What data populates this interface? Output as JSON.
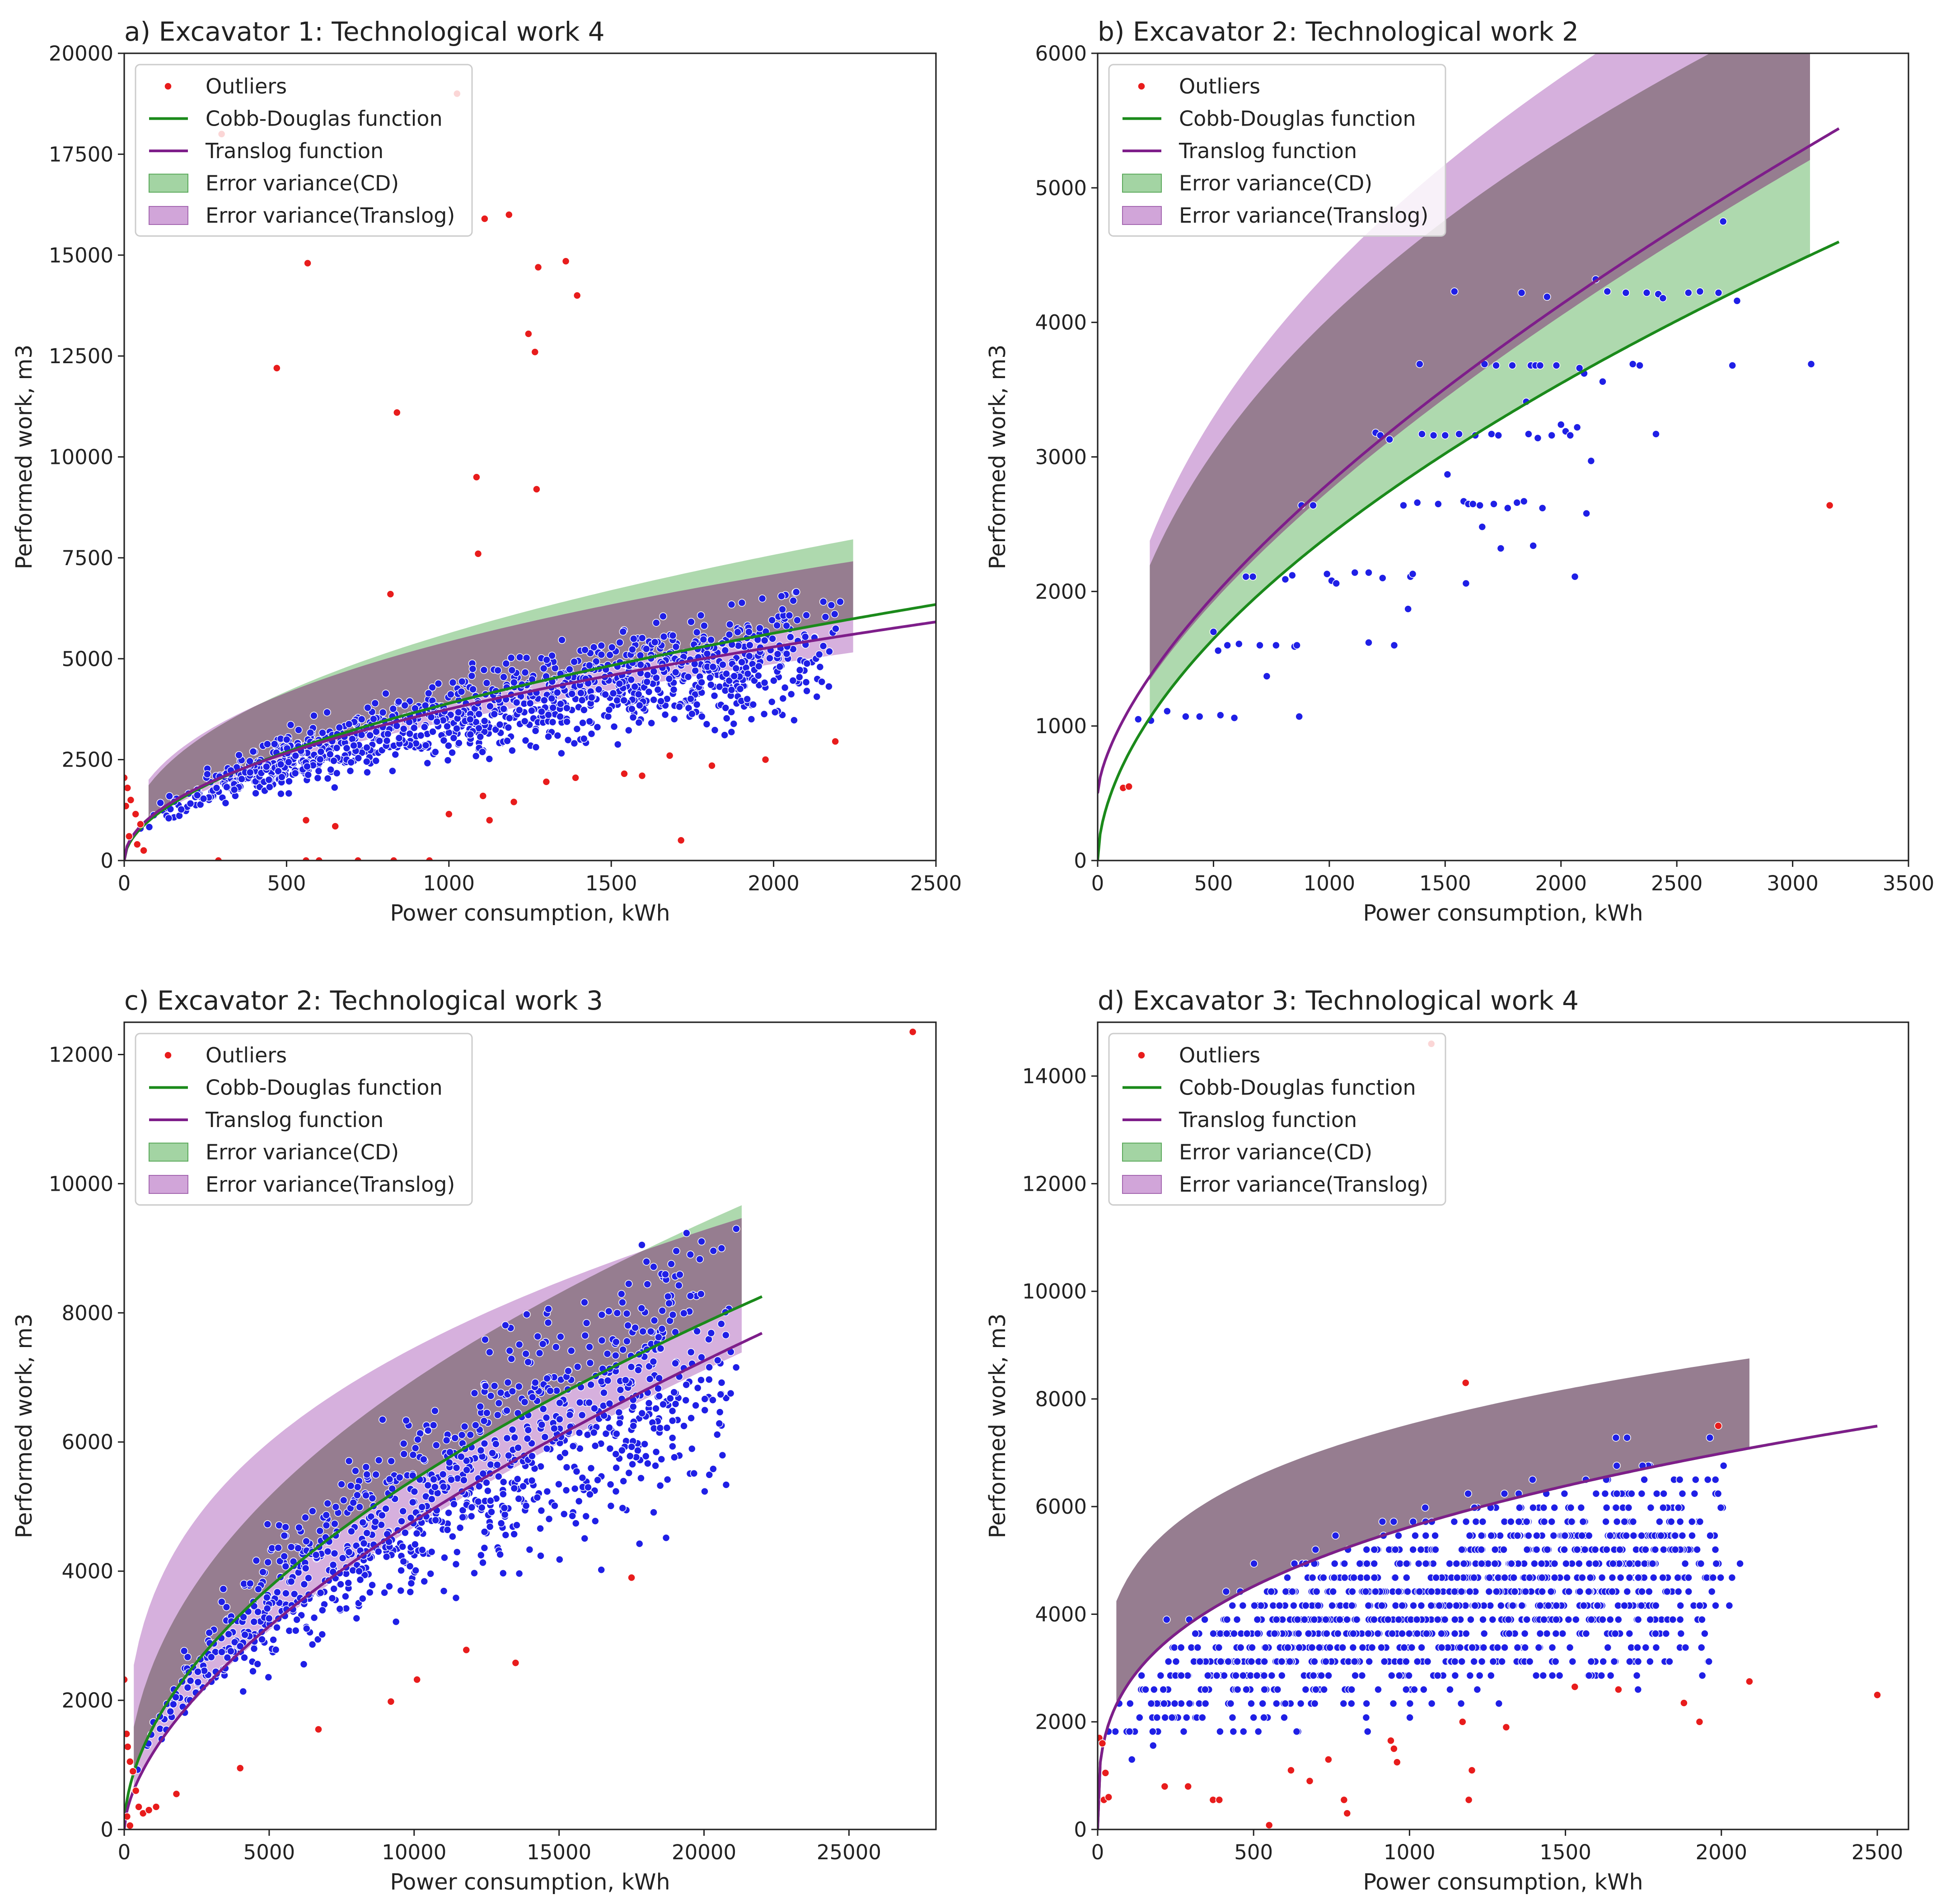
{
  "figure": {
    "legend": {
      "outliers": "Outliers",
      "cd": "Cobb-Douglas function",
      "translog": "Translog function",
      "err_cd": "Error variance(CD)",
      "err_translog": "Error variance(Translog)"
    },
    "colors": {
      "inlier": "#1f1fe6",
      "outlier": "#e81c1c",
      "cd": "#1b8a1b",
      "translog": "#7e1e8a",
      "err_cd": "#8cc98c",
      "err_translog": "#c58fcf",
      "overlap": "#8f7686"
    }
  },
  "chart_data": [
    {
      "id": "a",
      "type": "scatter",
      "title": "a) Excavator 1: Technological work 4",
      "xlabel": "Power consumption, kWh",
      "ylabel": "Performed work, m3",
      "xlim": [
        0,
        2500
      ],
      "ylim": [
        0,
        20000
      ],
      "xticks": [
        0,
        500,
        1000,
        1500,
        2000,
        2500
      ],
      "yticks": [
        0,
        2500,
        5000,
        7500,
        10000,
        12500,
        15000,
        17500,
        20000
      ],
      "legend_position": "upper-left",
      "cd_curve": {
        "a": 98,
        "b": 0.533,
        "x_range": [
          0,
          2500
        ]
      },
      "translog_curve": {
        "a": 122,
        "b": 0.496,
        "x_range": [
          0,
          2500
        ]
      },
      "band_cd": {
        "x_range": [
          75,
          2245
        ],
        "upper_a": 295,
        "upper_b": 0.427,
        "lower_factor": 1.0
      },
      "band_translog": {
        "x_range": [
          75,
          2245
        ],
        "upper_a": 380,
        "upper_b": 0.385,
        "lower_factor": 0.92
      },
      "inlier_cloud": {
        "count": 1250,
        "x_range": [
          10,
          2240
        ],
        "rel_low": 0.52,
        "rel_high": 1.28,
        "seed": 11
      },
      "outliers": [
        [
          0,
          2050
        ],
        [
          10,
          1800
        ],
        [
          20,
          1500
        ],
        [
          35,
          1150
        ],
        [
          50,
          900
        ],
        [
          15,
          600
        ],
        [
          40,
          400
        ],
        [
          60,
          250
        ],
        [
          5,
          1350
        ],
        [
          300,
          18000
        ],
        [
          470,
          12200
        ],
        [
          565,
          14800
        ],
        [
          1025,
          19000
        ],
        [
          1110,
          15900
        ],
        [
          1185,
          16000
        ],
        [
          1275,
          14700
        ],
        [
          1360,
          14850
        ],
        [
          1395,
          14000
        ],
        [
          1245,
          13050
        ],
        [
          1265,
          12600
        ],
        [
          840,
          11100
        ],
        [
          1085,
          9500
        ],
        [
          1270,
          9200
        ],
        [
          1090,
          7600
        ],
        [
          820,
          6600
        ],
        [
          560,
          1000
        ],
        [
          650,
          850
        ],
        [
          1000,
          1150
        ],
        [
          1105,
          1600
        ],
        [
          1125,
          1000
        ],
        [
          1200,
          1450
        ],
        [
          1300,
          1950
        ],
        [
          1390,
          2050
        ],
        [
          1540,
          2150
        ],
        [
          1595,
          2100
        ],
        [
          1680,
          2600
        ],
        [
          1715,
          500
        ],
        [
          1810,
          2350
        ],
        [
          1975,
          2500
        ],
        [
          2190,
          2950
        ],
        [
          290,
          0
        ],
        [
          560,
          0
        ],
        [
          600,
          0
        ],
        [
          720,
          0
        ],
        [
          830,
          0
        ],
        [
          940,
          0
        ]
      ]
    },
    {
      "id": "b",
      "type": "scatter",
      "title": "b) Excavator 2: Technological work 2",
      "xlabel": "Power consumption, kWh",
      "ylabel": "Performed work, m3",
      "xlim": [
        0,
        3500
      ],
      "ylim": [
        0,
        6000
      ],
      "xticks": [
        0,
        500,
        1000,
        1500,
        2000,
        2500,
        3000,
        3500
      ],
      "yticks": [
        0,
        1000,
        2000,
        3000,
        4000,
        5000,
        6000
      ],
      "legend_position": "upper-left",
      "cd_curve": {
        "a": 53,
        "b": 0.553,
        "x_range": [
          0,
          3200
        ]
      },
      "translog_curve": {
        "a": 25,
        "b": 0.655,
        "offset": 500,
        "x_range": [
          0,
          3200
        ]
      },
      "band_cd": {
        "x_range": [
          225,
          3075
        ],
        "upper_a": 240,
        "upper_b": 0.4085,
        "lower_factor": 1.0
      },
      "band_translog": {
        "x_range": [
          225,
          3075
        ],
        "upper_a": 258,
        "upper_b": 0.41,
        "lower_factor": 0.98
      },
      "inlier_cloud": {
        "count": 0
      },
      "inliers": [
        [
          175,
          1050
        ],
        [
          230,
          1040
        ],
        [
          300,
          1110
        ],
        [
          380,
          1070
        ],
        [
          440,
          1070
        ],
        [
          500,
          1700
        ],
        [
          520,
          1560
        ],
        [
          530,
          1080
        ],
        [
          560,
          1600
        ],
        [
          590,
          1060
        ],
        [
          610,
          1610
        ],
        [
          640,
          2110
        ],
        [
          670,
          2110
        ],
        [
          700,
          1600
        ],
        [
          730,
          1370
        ],
        [
          770,
          1600
        ],
        [
          810,
          2090
        ],
        [
          840,
          2120
        ],
        [
          850,
          1590
        ],
        [
          860,
          1600
        ],
        [
          870,
          1070
        ],
        [
          880,
          2640
        ],
        [
          930,
          2640
        ],
        [
          990,
          2130
        ],
        [
          1010,
          2080
        ],
        [
          1030,
          2060
        ],
        [
          1110,
          2140
        ],
        [
          1170,
          2140
        ],
        [
          1170,
          1620
        ],
        [
          1200,
          3180
        ],
        [
          1220,
          3160
        ],
        [
          1230,
          2100
        ],
        [
          1260,
          3130
        ],
        [
          1280,
          1600
        ],
        [
          1320,
          2640
        ],
        [
          1340,
          1870
        ],
        [
          1350,
          2110
        ],
        [
          1360,
          2130
        ],
        [
          1380,
          2660
        ],
        [
          1390,
          3690
        ],
        [
          1400,
          3170
        ],
        [
          1450,
          3160
        ],
        [
          1470,
          2650
        ],
        [
          1500,
          3160
        ],
        [
          1510,
          2870
        ],
        [
          1540,
          4230
        ],
        [
          1560,
          3170
        ],
        [
          1580,
          2670
        ],
        [
          1590,
          2060
        ],
        [
          1600,
          2650
        ],
        [
          1620,
          2650
        ],
        [
          1630,
          3160
        ],
        [
          1650,
          2640
        ],
        [
          1660,
          2480
        ],
        [
          1670,
          3690
        ],
        [
          1700,
          3170
        ],
        [
          1710,
          2650
        ],
        [
          1720,
          3680
        ],
        [
          1730,
          3160
        ],
        [
          1740,
          2320
        ],
        [
          1770,
          2620
        ],
        [
          1790,
          3680
        ],
        [
          1810,
          2660
        ],
        [
          1830,
          4220
        ],
        [
          1840,
          2670
        ],
        [
          1850,
          3410
        ],
        [
          1860,
          3170
        ],
        [
          1870,
          3680
        ],
        [
          1880,
          2340
        ],
        [
          1890,
          3680
        ],
        [
          1900,
          3140
        ],
        [
          1910,
          3680
        ],
        [
          1920,
          2620
        ],
        [
          1940,
          4190
        ],
        [
          1960,
          3160
        ],
        [
          1980,
          3680
        ],
        [
          2000,
          3240
        ],
        [
          2020,
          3190
        ],
        [
          2040,
          3160
        ],
        [
          2060,
          2110
        ],
        [
          2070,
          3220
        ],
        [
          2080,
          3660
        ],
        [
          2100,
          3620
        ],
        [
          2110,
          2580
        ],
        [
          2130,
          2970
        ],
        [
          2150,
          4320
        ],
        [
          2180,
          3560
        ],
        [
          2200,
          4230
        ],
        [
          2280,
          4220
        ],
        [
          2310,
          3690
        ],
        [
          2340,
          3680
        ],
        [
          2370,
          4220
        ],
        [
          2410,
          3170
        ],
        [
          2420,
          4210
        ],
        [
          2440,
          4180
        ],
        [
          2550,
          4220
        ],
        [
          2600,
          4230
        ],
        [
          2680,
          4220
        ],
        [
          2700,
          4750
        ],
        [
          2740,
          3680
        ],
        [
          2760,
          4160
        ],
        [
          3080,
          3690
        ]
      ],
      "outliers": [
        [
          110,
          540
        ],
        [
          135,
          550
        ],
        [
          3160,
          2640
        ]
      ]
    },
    {
      "id": "c",
      "type": "scatter",
      "title": "c) Excavator 2: Technological work 3",
      "xlabel": "Power consumption, kWh",
      "ylabel": "Performed work, m3",
      "xlim": [
        0,
        28000
      ],
      "ylim": [
        0,
        12500
      ],
      "xticks": [
        0,
        5000,
        10000,
        15000,
        20000,
        25000
      ],
      "yticks": [
        0,
        2000,
        4000,
        6000,
        8000,
        10000,
        12000
      ],
      "legend_position": "upper-left",
      "cd_curve": {
        "a": 40,
        "b": 0.533,
        "x_range": [
          0,
          22000
        ]
      },
      "translog_curve": {
        "a": 18.5,
        "b": 0.603,
        "x_range": [
          0,
          22000
        ]
      },
      "band_cd": {
        "x_range": [
          330,
          21300
        ],
        "upper_a": 128.5,
        "upper_b": 0.4335,
        "lower_factor": 1.0
      },
      "band_translog": {
        "x_range": [
          330,
          21300
        ],
        "upper_a": 410,
        "upper_b": 0.315,
        "lower_factor": 0.98
      },
      "inlier_cloud": {
        "count": 1050,
        "x_range": [
          200,
          21500
        ],
        "rel_low": 0.55,
        "rel_high": 1.3,
        "seed": 23
      },
      "outliers": [
        [
          0,
          2320
        ],
        [
          80,
          1480
        ],
        [
          120,
          1280
        ],
        [
          200,
          1050
        ],
        [
          300,
          900
        ],
        [
          400,
          600
        ],
        [
          500,
          350
        ],
        [
          650,
          250
        ],
        [
          850,
          300
        ],
        [
          1100,
          350
        ],
        [
          1800,
          550
        ],
        [
          100,
          200
        ],
        [
          200,
          60
        ],
        [
          4000,
          950
        ],
        [
          6700,
          1550
        ],
        [
          9200,
          1980
        ],
        [
          10100,
          2320
        ],
        [
          11800,
          2780
        ],
        [
          13500,
          2580
        ],
        [
          17500,
          3900
        ],
        [
          27200,
          12350
        ]
      ]
    },
    {
      "id": "d",
      "type": "scatter",
      "title": "d) Excavator 3: Technological work 4",
      "xlabel": "Power consumption, kWh",
      "ylabel": "Performed work, m3",
      "xlim": [
        0,
        2600
      ],
      "ylim": [
        0,
        15000
      ],
      "xticks": [
        0,
        500,
        1000,
        1500,
        2000,
        2500
      ],
      "yticks": [
        0,
        2000,
        4000,
        6000,
        8000,
        10000,
        12000,
        14000
      ],
      "legend_position": "upper-left",
      "cd_curve": {
        "a": 640,
        "b": 0.3145,
        "x_range": [
          0,
          2500
        ]
      },
      "translog_curve": {
        "a": 640,
        "b": 0.3145,
        "x_range": [
          0,
          2500
        ]
      },
      "band_cd": {
        "x_range": [
          60,
          2090
        ],
        "upper_a": 1840,
        "upper_b": 0.204,
        "lower_factor": 1.0
      },
      "band_translog": {
        "x_range": [
          60,
          2090
        ],
        "upper_a": 1840,
        "upper_b": 0.204,
        "lower_factor": 1.0
      },
      "inlier_cloud": {
        "count": 1300,
        "x_range": [
          20,
          2090
        ],
        "rel_low": 0.3,
        "rel_high": 1.15,
        "quantum": 260,
        "seed": 37
      },
      "outliers": [
        [
          5,
          1700
        ],
        [
          15,
          1600
        ],
        [
          25,
          1050
        ],
        [
          20,
          550
        ],
        [
          35,
          600
        ],
        [
          1070,
          14600
        ],
        [
          1180,
          8300
        ],
        [
          1990,
          7500
        ],
        [
          215,
          800
        ],
        [
          290,
          800
        ],
        [
          370,
          550
        ],
        [
          390,
          550
        ],
        [
          550,
          80
        ],
        [
          620,
          1100
        ],
        [
          680,
          900
        ],
        [
          740,
          1300
        ],
        [
          790,
          550
        ],
        [
          800,
          300
        ],
        [
          940,
          1650
        ],
        [
          950,
          1500
        ],
        [
          960,
          1250
        ],
        [
          1170,
          2000
        ],
        [
          1190,
          550
        ],
        [
          1200,
          1100
        ],
        [
          1310,
          1900
        ],
        [
          1530,
          2650
        ],
        [
          1670,
          2600
        ],
        [
          1880,
          2350
        ],
        [
          1930,
          2000
        ],
        [
          2090,
          2750
        ],
        [
          2500,
          2500
        ]
      ]
    }
  ]
}
